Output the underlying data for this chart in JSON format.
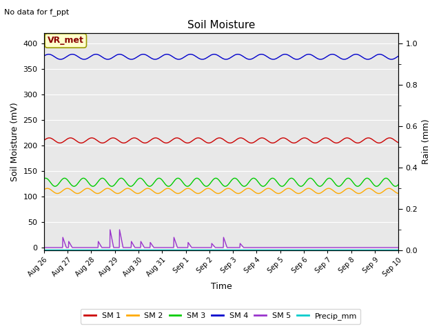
{
  "title": "Soil Moisture",
  "no_data_text": "No data for f_ppt",
  "xlabel": "Time",
  "ylabel_left": "Soil Moisture (mV)",
  "ylabel_right": "Rain (mm)",
  "ylim_left": [
    -5,
    420
  ],
  "ylim_right": [
    0.0,
    1.05
  ],
  "yticks_left": [
    0,
    50,
    100,
    150,
    200,
    250,
    300,
    350,
    400
  ],
  "yticks_right_vals": [
    0.0,
    0.2,
    0.4,
    0.6,
    0.8,
    1.0
  ],
  "yticks_right_labels": [
    "0.0",
    "0.2",
    "0.4",
    "0.6",
    "0.8",
    "1.0"
  ],
  "bg_color": "#e8e8e8",
  "legend_box_label": "VR_met",
  "legend_box_facecolor": "#ffffcc",
  "legend_box_edgecolor": "#999900",
  "sm1_color": "#cc0000",
  "sm2_color": "#ffaa00",
  "sm3_color": "#00cc00",
  "sm4_color": "#0000cc",
  "sm5_color": "#9933cc",
  "precip_color": "#00cccc",
  "sm1_base": 210,
  "sm1_amp": 5,
  "sm1_period": 0.9,
  "sm2_base": 111,
  "sm2_amp": 5,
  "sm2_period": 0.85,
  "sm3_base": 128,
  "sm3_amp": 8,
  "sm3_period": 0.8,
  "sm4_base": 374,
  "sm4_amp": 5,
  "sm4_period": 1.0,
  "sm5_spikes_x": [
    0.8,
    1.05,
    2.3,
    2.8,
    3.2,
    3.7,
    4.1,
    4.5,
    5.5,
    6.1,
    7.1,
    7.6,
    8.3
  ],
  "sm5_spikes_h": [
    20,
    12,
    12,
    35,
    35,
    12,
    12,
    10,
    20,
    10,
    8,
    20,
    8
  ],
  "xtick_positions": [
    0,
    1,
    2,
    3,
    4,
    5,
    6,
    7,
    8,
    9,
    10,
    11,
    12,
    13,
    14,
    15
  ],
  "xtick_labels": [
    "Aug 26",
    "Aug 27",
    "Aug 28",
    "Aug 29",
    "Aug 30",
    "Aug 31",
    "Sep 1",
    "Sep 2",
    "Sep 3",
    "Sep 4",
    "Sep 5",
    "Sep 6",
    "Sep 7",
    "Sep 8",
    "Sep 9",
    "Sep 10"
  ],
  "legend_entries": [
    {
      "label": "SM 1",
      "color": "#cc0000"
    },
    {
      "label": "SM 2",
      "color": "#ffaa00"
    },
    {
      "label": "SM 3",
      "color": "#00cc00"
    },
    {
      "label": "SM 4",
      "color": "#0000cc"
    },
    {
      "label": "SM 5",
      "color": "#9933cc"
    },
    {
      "label": "Precip_mm",
      "color": "#00cccc"
    }
  ]
}
